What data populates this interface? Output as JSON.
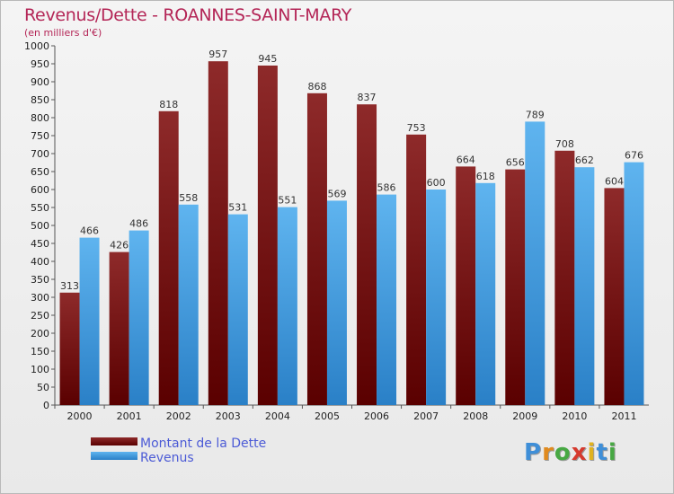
{
  "chart_data": {
    "type": "bar",
    "title": "Revenus/Dette - ROANNES-SAINT-MARY",
    "subtitle": "(en milliers d'€)",
    "categories": [
      "2000",
      "2001",
      "2002",
      "2003",
      "2004",
      "2005",
      "2006",
      "2007",
      "2008",
      "2009",
      "2010",
      "2011"
    ],
    "series": [
      {
        "name": "Montant de la Dette",
        "color": "#8b1a1a",
        "values": [
          313,
          426,
          818,
          957,
          945,
          868,
          837,
          753,
          664,
          656,
          708,
          604
        ]
      },
      {
        "name": "Revenus",
        "color": "#4aa3e6",
        "values": [
          466,
          486,
          558,
          531,
          551,
          569,
          586,
          600,
          618,
          789,
          662,
          676
        ]
      }
    ],
    "ylim": [
      0,
      1000
    ],
    "yticks": [
      0,
      50,
      100,
      150,
      200,
      250,
      300,
      350,
      400,
      450,
      500,
      550,
      600,
      650,
      700,
      750,
      800,
      850,
      900,
      950,
      1000
    ],
    "grid": false,
    "legend_position": "bottom-left"
  },
  "brand": {
    "letters": [
      "P",
      "r",
      "o",
      "x",
      "i",
      "t",
      "i"
    ],
    "colors": [
      "#3f8fd8",
      "#e08a1e",
      "#47a843",
      "#d63a2e",
      "#e0b21e",
      "#3f8fd8",
      "#47a843"
    ]
  }
}
